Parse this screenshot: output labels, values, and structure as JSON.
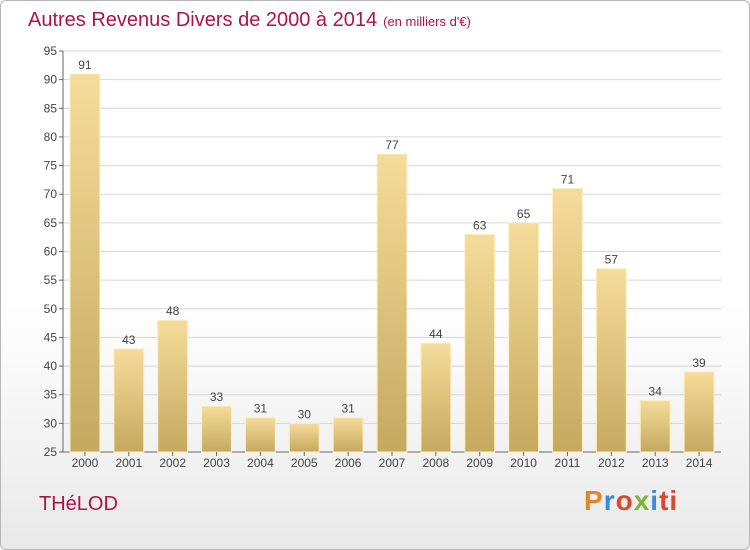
{
  "title": "Autres Revenus Divers de 2000 à 2014",
  "subtitle": "(en milliers d'€)",
  "place": "THéLOD",
  "logo": [
    "P",
    "r",
    "o",
    "x",
    "i",
    "ti"
  ],
  "colors": {
    "title": "#b2114a",
    "bar_top": "#f6dc9a",
    "bar_bottom": "#c5a95f",
    "axis": "#666666"
  },
  "chart_data": {
    "type": "bar",
    "title": "Autres Revenus Divers de 2000 à 2014",
    "xlabel": "",
    "ylabel": "",
    "categories": [
      "2000",
      "2001",
      "2002",
      "2003",
      "2004",
      "2005",
      "2006",
      "2007",
      "2008",
      "2009",
      "2010",
      "2011",
      "2012",
      "2013",
      "2014"
    ],
    "values": [
      91,
      43,
      48,
      33,
      31,
      30,
      31,
      77,
      44,
      63,
      65,
      71,
      57,
      34,
      39
    ],
    "ylim": [
      25,
      95
    ],
    "yticks": [
      25,
      30,
      35,
      40,
      45,
      50,
      55,
      60,
      65,
      70,
      75,
      80,
      85,
      90,
      95
    ],
    "grid": true,
    "legend": "none"
  }
}
